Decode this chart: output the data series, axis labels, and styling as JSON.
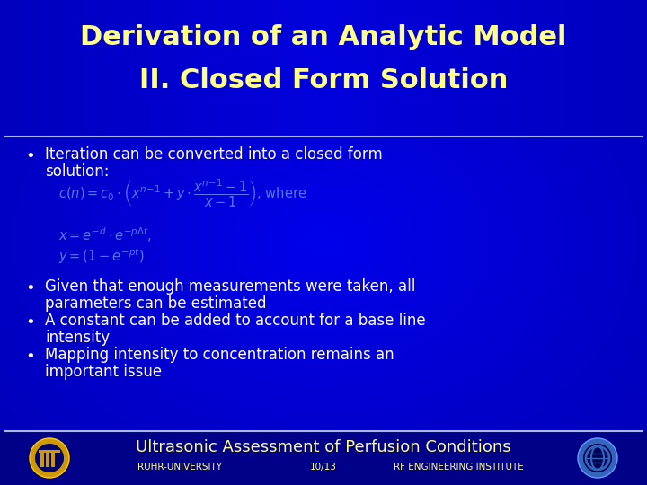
{
  "title_line1": "Derivation of an Analytic Model",
  "title_line2": "II. Closed Form Solution",
  "bg_color": "#0000CC",
  "title_color": "#FFFF88",
  "bullet_color": "#FFFFFF",
  "formula_color": "#5577EE",
  "footer_color": "#FFFF88",
  "footer_text": "Ultrasonic Assessment of Perfusion Conditions",
  "footer_sub_left": "RUHR-UNIVERSITY",
  "footer_sub_center": "10/13",
  "footer_sub_right": "RF ENGINEERING INSTITUTE",
  "separator_color": "#CCCCFF",
  "bullet1_line1": "Iteration can be converted into a closed form",
  "bullet1_line2": "solution:",
  "bullet2_line1": "Given that enough measurements were taken, all",
  "bullet2_line2": "parameters can be estimated",
  "bullet3_line1": "A constant can be added to account for a base line",
  "bullet3_line2": "intensity",
  "bullet4_line1": "Mapping intensity to concentration remains an",
  "bullet4_line2": "important issue"
}
